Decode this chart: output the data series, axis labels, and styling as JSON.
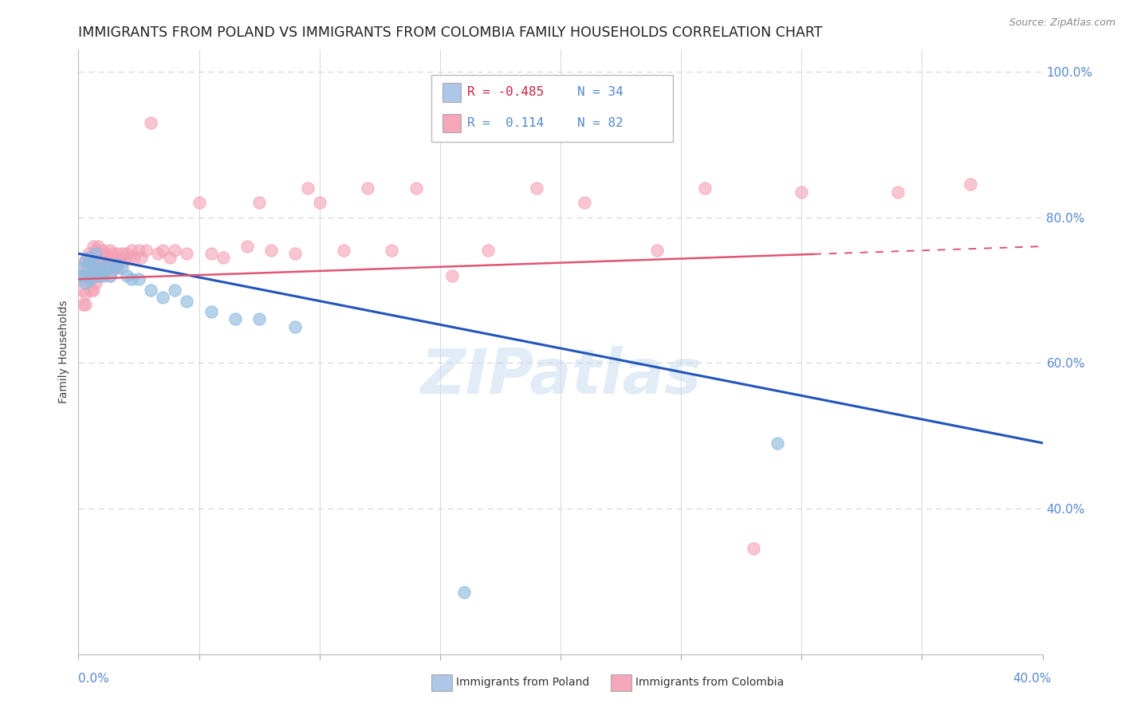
{
  "title": "IMMIGRANTS FROM POLAND VS IMMIGRANTS FROM COLOMBIA FAMILY HOUSEHOLDS CORRELATION CHART",
  "source": "Source: ZipAtlas.com",
  "ylabel": "Family Households",
  "watermark": "ZIPatlas",
  "legend_poland": {
    "R": "-0.485",
    "N": "34",
    "color": "#aec6e8"
  },
  "legend_colombia": {
    "R": "0.114",
    "N": "82",
    "color": "#f4a7b9"
  },
  "poland_scatter": {
    "x": [
      0.001,
      0.002,
      0.002,
      0.003,
      0.003,
      0.004,
      0.004,
      0.005,
      0.005,
      0.006,
      0.007,
      0.008,
      0.008,
      0.009,
      0.01,
      0.011,
      0.012,
      0.013,
      0.015,
      0.016,
      0.018,
      0.02,
      0.022,
      0.025,
      0.03,
      0.035,
      0.04,
      0.045,
      0.055,
      0.065,
      0.075,
      0.09,
      0.16,
      0.29
    ],
    "y": [
      0.72,
      0.73,
      0.72,
      0.74,
      0.71,
      0.745,
      0.72,
      0.735,
      0.715,
      0.73,
      0.75,
      0.735,
      0.72,
      0.725,
      0.72,
      0.73,
      0.735,
      0.72,
      0.73,
      0.735,
      0.73,
      0.72,
      0.715,
      0.715,
      0.7,
      0.69,
      0.7,
      0.685,
      0.67,
      0.66,
      0.66,
      0.65,
      0.285,
      0.49
    ]
  },
  "colombia_scatter": {
    "x": [
      0.001,
      0.001,
      0.002,
      0.002,
      0.002,
      0.003,
      0.003,
      0.003,
      0.003,
      0.004,
      0.004,
      0.004,
      0.005,
      0.005,
      0.005,
      0.006,
      0.006,
      0.006,
      0.006,
      0.007,
      0.007,
      0.007,
      0.008,
      0.008,
      0.008,
      0.009,
      0.009,
      0.01,
      0.01,
      0.01,
      0.011,
      0.011,
      0.012,
      0.012,
      0.013,
      0.013,
      0.013,
      0.014,
      0.014,
      0.015,
      0.015,
      0.016,
      0.016,
      0.017,
      0.018,
      0.019,
      0.02,
      0.021,
      0.022,
      0.023,
      0.025,
      0.026,
      0.028,
      0.03,
      0.033,
      0.035,
      0.038,
      0.04,
      0.045,
      0.05,
      0.055,
      0.06,
      0.07,
      0.075,
      0.08,
      0.09,
      0.095,
      0.1,
      0.11,
      0.12,
      0.13,
      0.14,
      0.155,
      0.17,
      0.19,
      0.21,
      0.24,
      0.26,
      0.28,
      0.3,
      0.34,
      0.37
    ],
    "y": [
      0.73,
      0.715,
      0.72,
      0.7,
      0.68,
      0.74,
      0.72,
      0.695,
      0.68,
      0.75,
      0.73,
      0.715,
      0.745,
      0.72,
      0.7,
      0.76,
      0.74,
      0.72,
      0.7,
      0.755,
      0.73,
      0.71,
      0.76,
      0.74,
      0.72,
      0.75,
      0.73,
      0.755,
      0.74,
      0.72,
      0.75,
      0.73,
      0.745,
      0.73,
      0.755,
      0.74,
      0.72,
      0.75,
      0.73,
      0.745,
      0.73,
      0.75,
      0.73,
      0.74,
      0.75,
      0.74,
      0.75,
      0.745,
      0.755,
      0.745,
      0.755,
      0.745,
      0.755,
      0.93,
      0.75,
      0.755,
      0.745,
      0.755,
      0.75,
      0.82,
      0.75,
      0.745,
      0.76,
      0.82,
      0.755,
      0.75,
      0.84,
      0.82,
      0.755,
      0.84,
      0.755,
      0.84,
      0.72,
      0.755,
      0.84,
      0.82,
      0.755,
      0.84,
      0.345,
      0.835,
      0.835,
      0.845
    ]
  },
  "poland_trend_x": [
    0.0,
    0.4
  ],
  "poland_trend_y": [
    0.75,
    0.49
  ],
  "colombia_trend_x": [
    0.0,
    0.4
  ],
  "colombia_trend_y": [
    0.715,
    0.76
  ],
  "xmin": 0.0,
  "xmax": 0.4,
  "ymin": 0.2,
  "ymax": 1.03,
  "scatter_size": 120,
  "poland_color": "#90bce0",
  "colombia_color": "#f4a0b5",
  "poland_trend_color": "#2255bb",
  "colombia_trend_color": "#e05575",
  "background_color": "#ffffff",
  "grid_color": "#d8d8d8",
  "title_fontsize": 12.5,
  "axis_label_fontsize": 10,
  "tick_fontsize": 11,
  "right_axis_color": "#5588cc"
}
